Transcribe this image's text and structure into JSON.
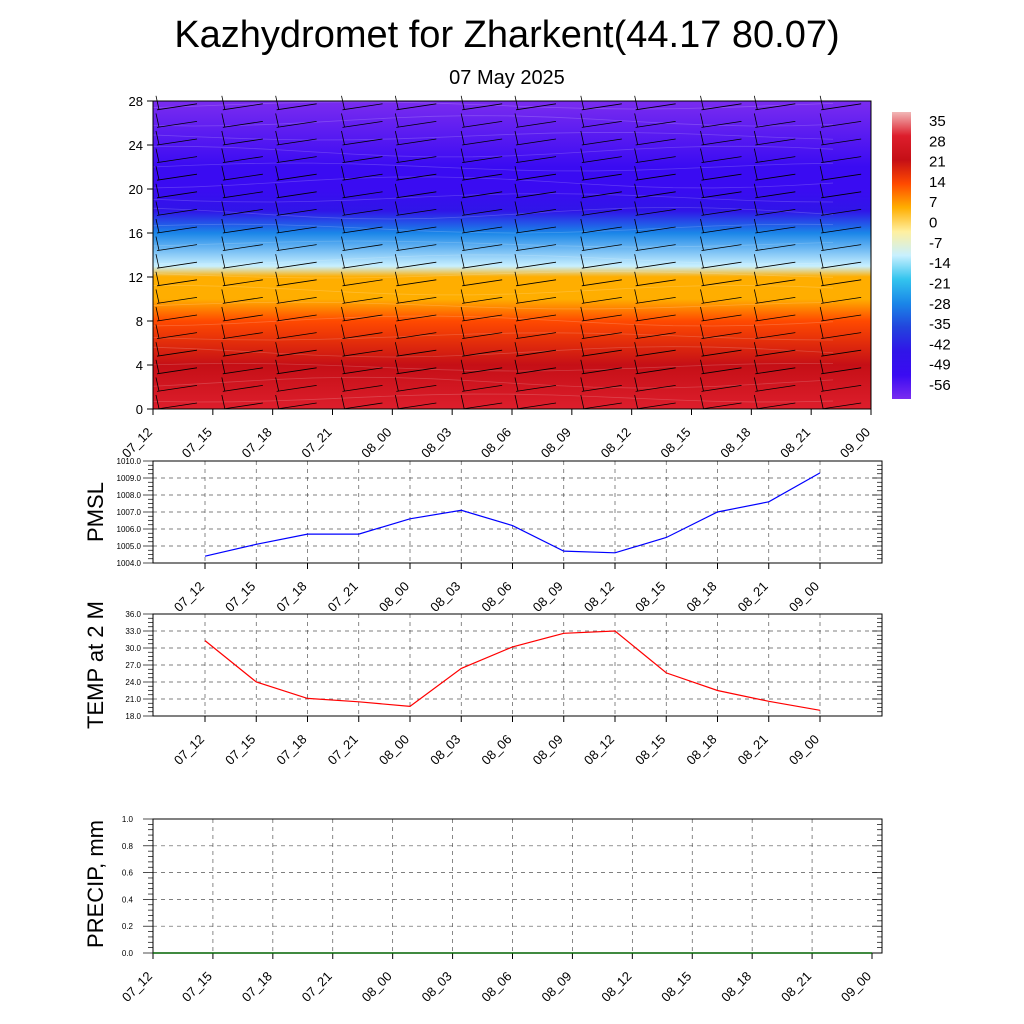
{
  "title": "Kazhydromet for Zharkent(44.17 80.07)",
  "subtitle": "07 May 2025",
  "chart_data": [
    {
      "type": "heatmap",
      "name": "temperature cross-section with wind barbs",
      "x_ticks": [
        "07_12",
        "07_15",
        "07_18",
        "07_21",
        "08_00",
        "08_03",
        "08_06",
        "08_09",
        "08_12",
        "08_15",
        "08_18",
        "08_21",
        "09_00"
      ],
      "y_ticks": [
        0,
        4,
        8,
        12,
        16,
        20,
        24,
        28
      ],
      "ylim": [
        0,
        28
      ],
      "colorbar_labels": [
        "35",
        "28",
        "21",
        "14",
        "7",
        "0",
        "-7",
        "-14",
        "-21",
        "-28",
        "-35",
        "-42",
        "-49",
        "-56"
      ],
      "colorbar_colors": [
        "#f1b7b7",
        "#dd1e2c",
        "#c50f16",
        "#ff4a00",
        "#ffae00",
        "#fff0a0",
        "#c8f0ff",
        "#33c4ee",
        "#1a86e8",
        "#2244dd",
        "#3015e8",
        "#3a0bf2",
        "#7a2cf0"
      ],
      "profile_levels": [
        0,
        4,
        8,
        10,
        12,
        13,
        16,
        18,
        20,
        22,
        28
      ],
      "profile_values": [
        28,
        21,
        14,
        7,
        0,
        -14,
        -28,
        -42,
        -56,
        -56,
        -58
      ],
      "grid": false
    },
    {
      "type": "line",
      "ylabel": "PMSL",
      "x": [
        "07_12",
        "07_15",
        "07_18",
        "07_21",
        "08_00",
        "08_03",
        "08_06",
        "08_09",
        "08_12",
        "08_15",
        "08_18",
        "08_21",
        "09_00"
      ],
      "y_ticks": [
        "1010.0",
        "1009.0",
        "1008.0",
        "1007.0",
        "1006.0",
        "1005.0",
        "1004.0"
      ],
      "ylim": [
        1004.0,
        1010.0
      ],
      "series": [
        {
          "values": [
            1004.4,
            1005.1,
            1005.7,
            1005.7,
            1006.6,
            1007.1,
            1006.2,
            1004.7,
            1004.6,
            1005.5,
            1007.0,
            1007.6,
            1009.3
          ],
          "color": "#0000ff"
        }
      ],
      "grid": true
    },
    {
      "type": "line",
      "ylabel": "TEMP at 2 M",
      "x": [
        "07_12",
        "07_15",
        "07_18",
        "07_21",
        "08_00",
        "08_03",
        "08_06",
        "08_09",
        "08_12",
        "08_15",
        "08_18",
        "08_21",
        "09_00"
      ],
      "y_ticks": [
        "36.0",
        "33.0",
        "30.0",
        "27.0",
        "24.0",
        "21.0",
        "18.0"
      ],
      "ylim": [
        18.0,
        36.0
      ],
      "series": [
        {
          "values": [
            31.3,
            24.0,
            21.1,
            20.5,
            19.7,
            26.4,
            30.2,
            32.6,
            33.0,
            25.6,
            22.5,
            20.6,
            19.0
          ],
          "color": "#ff0000"
        }
      ],
      "grid": true
    },
    {
      "type": "line",
      "ylabel": "PRECIP, mm",
      "x": [
        "07_12",
        "07_15",
        "07_18",
        "07_21",
        "08_00",
        "08_03",
        "08_06",
        "08_09",
        "08_12",
        "08_15",
        "08_18",
        "08_21",
        "09_00"
      ],
      "y_ticks": [
        "1.0",
        "0.8",
        "0.6",
        "0.4",
        "0.2",
        "0.0"
      ],
      "ylim": [
        0.0,
        1.0
      ],
      "series": [
        {
          "values": [
            0,
            0,
            0,
            0,
            0,
            0,
            0,
            0,
            0,
            0,
            0,
            0,
            0
          ],
          "color": "#006400"
        }
      ],
      "grid": true
    }
  ]
}
